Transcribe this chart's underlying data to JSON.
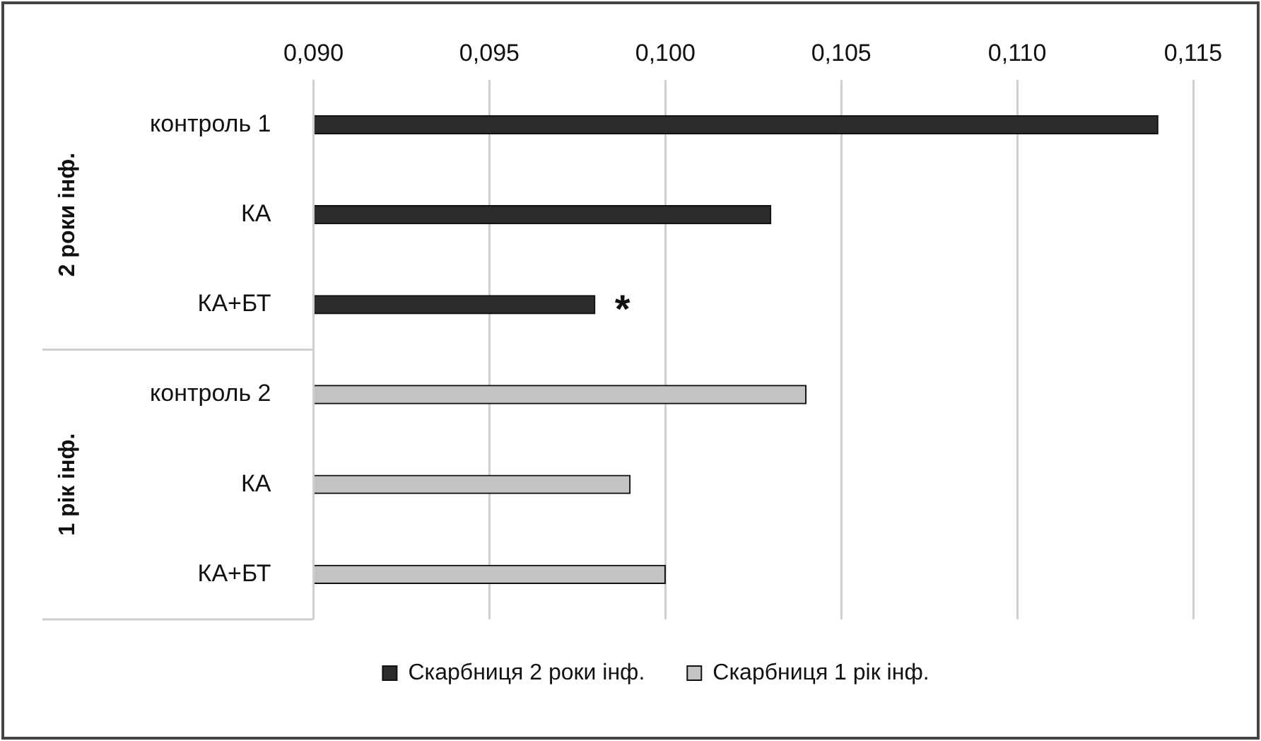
{
  "chart_data": {
    "type": "bar",
    "orientation": "horizontal",
    "categories": [
      "контроль 1",
      "КА",
      "КА+БТ",
      "контроль 2",
      "КА",
      "КА+БТ"
    ],
    "series": [
      {
        "name": "Скарбниця 2 роки інф.",
        "color": "#2b2b2b",
        "values": [
          0.114,
          0.103,
          0.098,
          null,
          null,
          null
        ]
      },
      {
        "name": "Скарбниця 1 рік інф.",
        "color": "#c4c4c4",
        "values": [
          null,
          null,
          null,
          0.104,
          0.099,
          0.1
        ]
      }
    ],
    "xlim": [
      0.09,
      0.115
    ],
    "xticks": [
      {
        "value": 0.09,
        "label": "0,090"
      },
      {
        "value": 0.095,
        "label": "0,095"
      },
      {
        "value": 0.1,
        "label": "0,100"
      },
      {
        "value": 0.105,
        "label": "0,105"
      },
      {
        "value": 0.11,
        "label": "0,110"
      },
      {
        "value": 0.115,
        "label": "0,115"
      }
    ],
    "grid": "x",
    "legend": "bottom",
    "annotations": [
      "2 роки інф.",
      "1 рік інф.",
      {
        "text": "*",
        "x": 0.098,
        "y": "КА+БТ"
      }
    ]
  }
}
